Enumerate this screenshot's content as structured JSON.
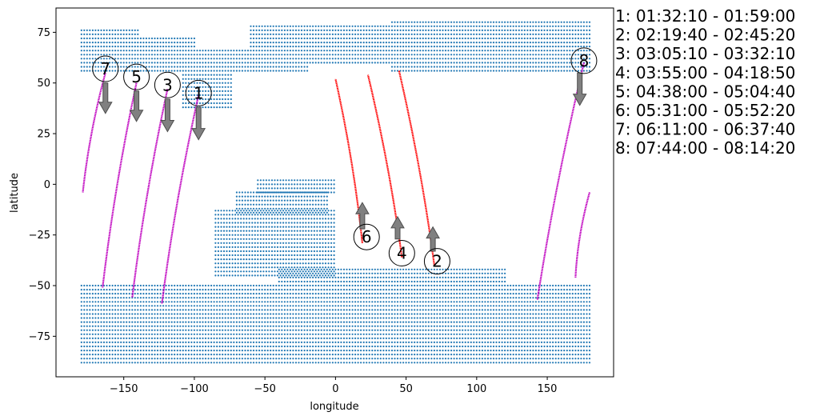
{
  "chart_data": {
    "type": "scatter",
    "title": "",
    "xlabel": "longitude",
    "ylabel": "latitude",
    "xlim": [
      -198,
      197
    ],
    "ylim": [
      -95,
      87
    ],
    "xticks": [
      -150,
      -100,
      -50,
      0,
      50,
      100,
      150
    ],
    "yticks": [
      -75,
      -50,
      -25,
      0,
      25,
      50,
      75
    ],
    "grid": false,
    "colors": {
      "grid_points": "#1f77b4",
      "descending_track": "#bf00bf",
      "ascending_track": "#ff0000",
      "direction_arrow": "#808080"
    },
    "grid_spacing_deg": 2,
    "land_mask_regions": [
      {
        "lon": [
          -180,
          -140
        ],
        "lat": [
          56,
          76
        ]
      },
      {
        "lon": [
          -140,
          -100
        ],
        "lat": [
          56,
          72
        ]
      },
      {
        "lon": [
          -108,
          -74
        ],
        "lat": [
          38,
          62
        ]
      },
      {
        "lon": [
          -100,
          -20
        ],
        "lat": [
          56,
          66
        ]
      },
      {
        "lon": [
          -60,
          40
        ],
        "lat": [
          60,
          78
        ]
      },
      {
        "lon": [
          40,
          180
        ],
        "lat": [
          56,
          80
        ]
      },
      {
        "lon": [
          -180,
          180
        ],
        "lat": [
          -88,
          -66
        ]
      },
      {
        "lon": [
          -180,
          -40
        ],
        "lat": [
          -70,
          -50
        ]
      },
      {
        "lon": [
          -40,
          120
        ],
        "lat": [
          -70,
          -42
        ]
      },
      {
        "lon": [
          -85,
          0
        ],
        "lat": [
          -45,
          -12
        ]
      },
      {
        "lon": [
          -70,
          -5
        ],
        "lat": [
          -14,
          -3
        ]
      },
      {
        "lon": [
          -55,
          0
        ],
        "lat": [
          -4,
          2
        ]
      },
      {
        "lon": [
          120,
          180
        ],
        "lat": [
          -68,
          -50
        ]
      }
    ],
    "tracks": [
      {
        "pass": "1",
        "direction": "descending",
        "lon_start": -97,
        "lat_start": 44,
        "lon_end": -123,
        "lat_end": -59,
        "label_lon": -97,
        "label_lat": 45,
        "arrow_lon": -97,
        "arrow_lat_from": 38,
        "arrow_lat_to": 22
      },
      {
        "pass": "2",
        "direction": "ascending",
        "lon_start": 70,
        "lat_start": -40,
        "lon_end": 45,
        "lat_end": 56,
        "label_lon": 72,
        "label_lat": -38,
        "arrow_lon": 69,
        "arrow_lat_from": -33,
        "arrow_lat_to": -21
      },
      {
        "pass": "3",
        "direction": "descending",
        "lon_start": -119,
        "lat_start": 47,
        "lon_end": -144,
        "lat_end": -56,
        "label_lon": -119,
        "label_lat": 49,
        "arrow_lon": -119,
        "arrow_lat_from": 42,
        "arrow_lat_to": 26
      },
      {
        "pass": "4",
        "direction": "ascending",
        "lon_start": 47,
        "lat_start": -36,
        "lon_end": 23,
        "lat_end": 54,
        "label_lon": 47,
        "label_lat": -34,
        "arrow_lon": 44,
        "arrow_lat_from": -27,
        "arrow_lat_to": -16
      },
      {
        "pass": "5",
        "direction": "descending",
        "lon_start": -141,
        "lat_start": 50,
        "lon_end": -165,
        "lat_end": -51,
        "label_lon": -141,
        "label_lat": 53,
        "arrow_lon": -141,
        "arrow_lat_from": 46,
        "arrow_lat_to": 31
      },
      {
        "pass": "6",
        "direction": "ascending",
        "lon_start": 19,
        "lat_start": -29,
        "lon_end": 0,
        "lat_end": 52,
        "label_lon": 22,
        "label_lat": -26,
        "arrow_lon": 19,
        "arrow_lat_from": -22,
        "arrow_lat_to": -9
      },
      {
        "pass": "7",
        "direction": "descending",
        "lon_start": -163,
        "lat_start": 55,
        "lon_end": -179,
        "lat_end": -4,
        "label_lon": -163,
        "label_lat": 57,
        "arrow_lon": -163,
        "arrow_lat_from": 50,
        "arrow_lat_to": 35
      },
      {
        "pass": "8",
        "direction": "descending",
        "lon_start": 176,
        "lat_start": 60,
        "lon_end": 143,
        "lat_end": -57,
        "label_lon": 176,
        "label_lat": 61,
        "arrow_lon": 173,
        "arrow_lat_from": 55,
        "arrow_lat_to": 39
      },
      {
        "pass": "8",
        "direction": "descending",
        "lon_start": 180,
        "lat_start": -4,
        "lon_end": 170,
        "lat_end": -46
      }
    ],
    "legend_position": "right-outside-top",
    "legend": [
      {
        "pass": "1",
        "text": "1:  01:32:10 - 01:59:00"
      },
      {
        "pass": "2",
        "text": "2:  02:19:40 - 02:45:20"
      },
      {
        "pass": "3",
        "text": "3:  03:05:10 - 03:32:10"
      },
      {
        "pass": "4",
        "text": "4:  03:55:00 - 04:18:50"
      },
      {
        "pass": "5",
        "text": "5:  04:38:00 - 05:04:40"
      },
      {
        "pass": "6",
        "text": "6:  05:31:00 - 05:52:20"
      },
      {
        "pass": "7",
        "text": "7:  06:11:00 - 06:37:40"
      },
      {
        "pass": "8",
        "text": "8:  07:44:00 - 08:14:20"
      }
    ]
  }
}
